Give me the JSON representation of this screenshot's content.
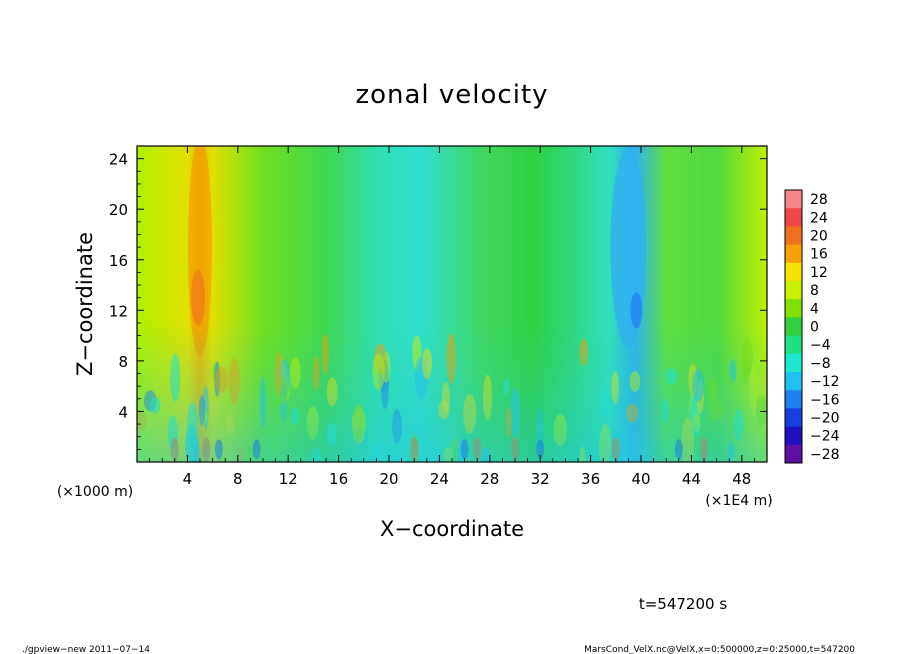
{
  "chart_data": {
    "type": "heatmap",
    "title": "zonal velocity",
    "xlabel": "X−coordinate",
    "ylabel": "Z−coordinate",
    "x_unit_left": "(×1000 m)",
    "x_unit_right": "(×1E4 m)",
    "xlim": [
      0,
      50
    ],
    "ylim": [
      0,
      25
    ],
    "xticks": [
      4,
      8,
      12,
      16,
      20,
      24,
      28,
      32,
      36,
      40,
      44,
      48
    ],
    "xtick_labels": [
      "4",
      "8",
      "12",
      "16",
      "20",
      "24",
      "28",
      "32",
      "36",
      "40",
      "44",
      "48"
    ],
    "yticks": [
      4,
      8,
      12,
      16,
      20,
      24
    ],
    "ytick_labels": [
      "4",
      "8",
      "12",
      "16",
      "20",
      "24"
    ],
    "colorbar": {
      "levels": [
        28,
        24,
        20,
        16,
        12,
        8,
        4,
        0,
        -4,
        -8,
        -12,
        -16,
        -20,
        -24,
        -28
      ],
      "labels": [
        "28",
        "24",
        "20",
        "16",
        "12",
        "8",
        "4",
        "0",
        "−4",
        "−8",
        "−12",
        "−16",
        "−20",
        "−24",
        "−28"
      ],
      "colors": [
        "#f88888",
        "#f04848",
        "#f07020",
        "#f8a000",
        "#f8e000",
        "#c8f000",
        "#80e000",
        "#30d040",
        "#20e080",
        "#20e8d0",
        "#20c0f0",
        "#2080f0",
        "#1840e0",
        "#2010c0",
        "#6010a0"
      ]
    },
    "dominant_features": {
      "positive_column_x": [
        4,
        6
      ],
      "negative_column_x": [
        38,
        40
      ],
      "neutral_bands_x": [
        [
          14,
          18
        ],
        [
          22,
          30
        ]
      ]
    }
  },
  "time_label": "t=547200 s",
  "footer": {
    "left": "./gpview−new   2011−07−14",
    "right": "MarsCond_VelX.nc@VelX,x=0:500000,z=0:25000,t=547200"
  }
}
